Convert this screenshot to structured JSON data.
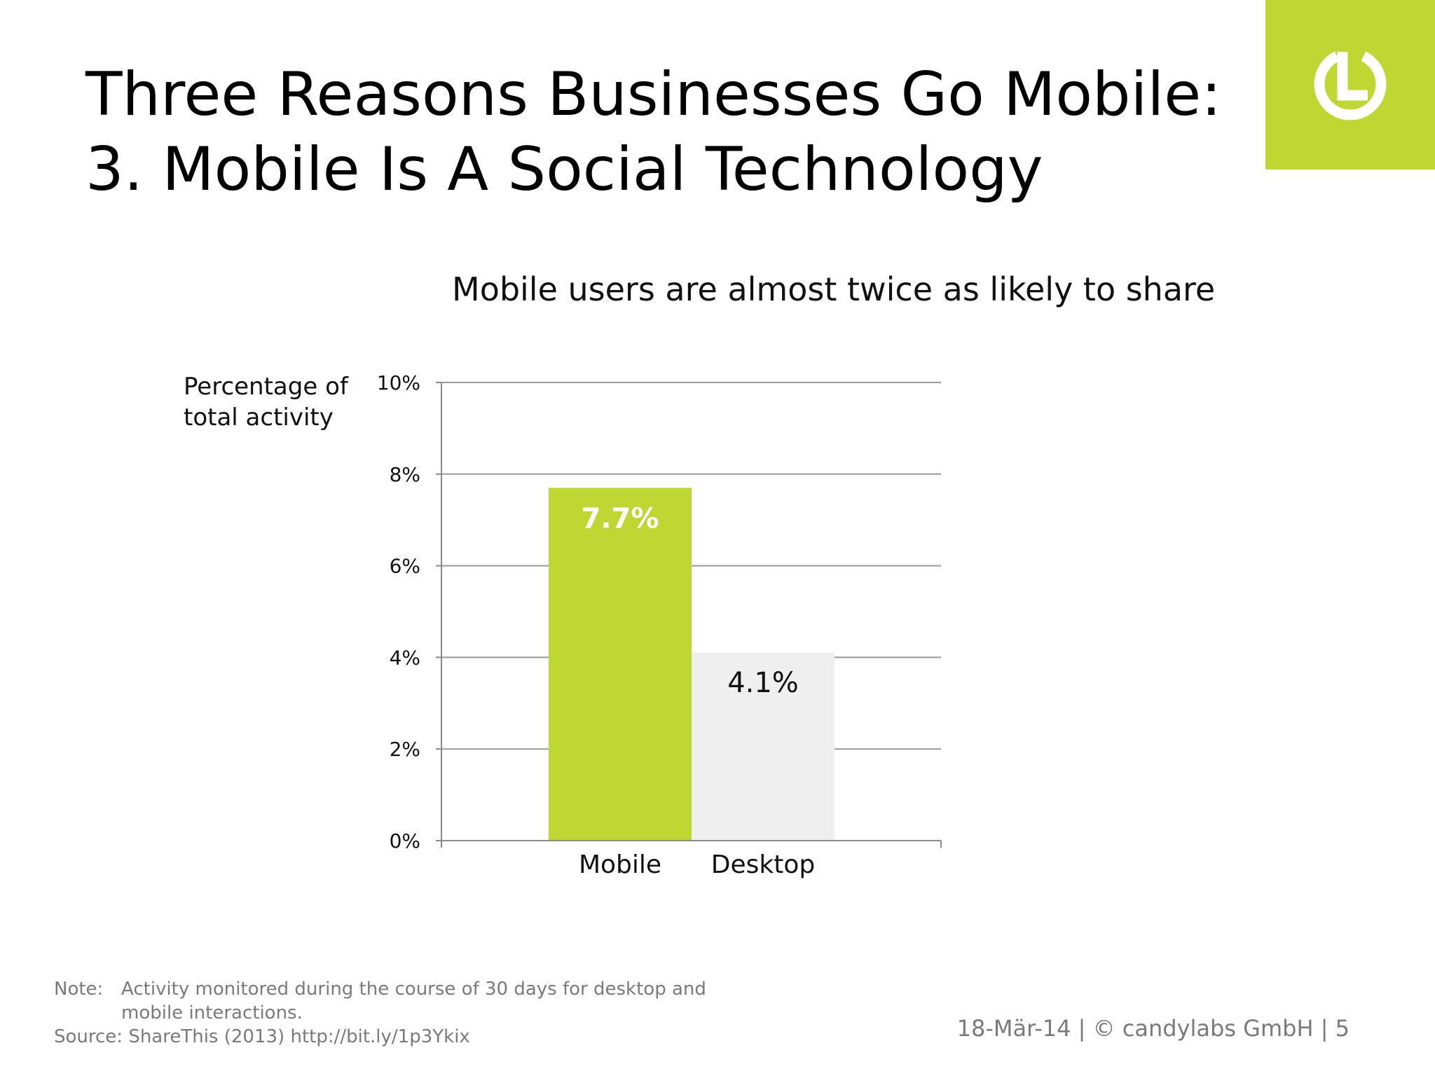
{
  "header": {
    "title_line1": "Three Reasons Businesses Go Mobile:",
    "title_line2": "3. Mobile Is A Social Technology"
  },
  "logo": {
    "icon": "power-button-icon",
    "background": "#bfd732"
  },
  "chart_data": {
    "type": "bar",
    "title": "Mobile users are almost twice as likely to share",
    "ylabel_line1": "Percentage of",
    "ylabel_line2": "total activity",
    "xlabel": "",
    "categories": [
      "Mobile",
      "Desktop"
    ],
    "values": [
      7.7,
      4.1
    ],
    "data_labels": [
      "7.7%",
      "4.1%"
    ],
    "bar_colors": [
      "#bfd732",
      "#efeff0"
    ],
    "data_label_colors": [
      "#ffffff",
      "#111111"
    ],
    "ylim": [
      0,
      10
    ],
    "yticks": [
      0,
      2,
      4,
      6,
      8,
      10
    ],
    "ytick_labels": [
      "0%",
      "2%",
      "4%",
      "6%",
      "8%",
      "10%"
    ],
    "grid": true,
    "legend": "none"
  },
  "notes": {
    "note_key": "Note:",
    "note_line1": "Activity monitored during the course of 30 days for desktop and",
    "note_line2": "mobile interactions.",
    "source": "Source: ShareThis (2013) http://bit.ly/1p3Ykix"
  },
  "footer": {
    "text": "18-Mär-14 | © candylabs GmbH | 5"
  }
}
